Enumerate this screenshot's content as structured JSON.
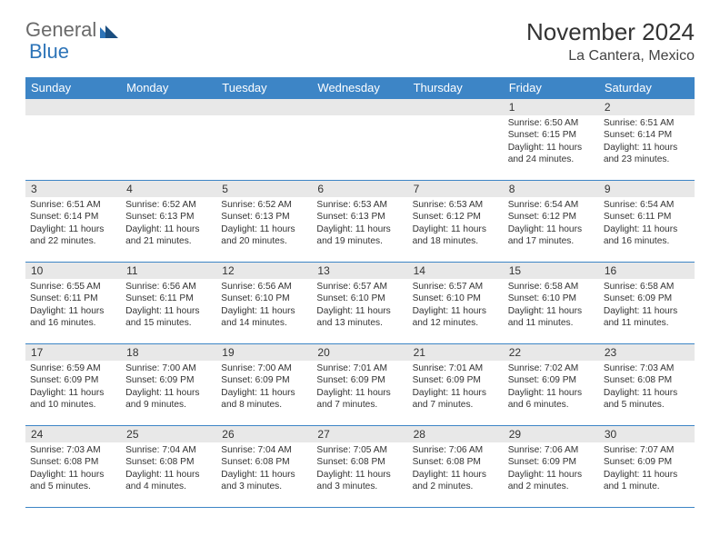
{
  "brand": {
    "general": "General",
    "blue": "Blue"
  },
  "header": {
    "title": "November 2024",
    "subtitle": "La Cantera, Mexico"
  },
  "colors": {
    "header_bg": "#3d85c6",
    "header_text": "#ffffff",
    "daynum_bg": "#e8e8e8",
    "border": "#3d85c6",
    "text": "#333333",
    "page_bg": "#ffffff"
  },
  "typography": {
    "title_fontsize": 26,
    "subtitle_fontsize": 16,
    "weekday_fontsize": 13,
    "daynum_fontsize": 12,
    "body_fontsize": 10.2
  },
  "weekdays": [
    "Sunday",
    "Monday",
    "Tuesday",
    "Wednesday",
    "Thursday",
    "Friday",
    "Saturday"
  ],
  "weeks": [
    [
      {
        "empty": true
      },
      {
        "empty": true
      },
      {
        "empty": true
      },
      {
        "empty": true
      },
      {
        "empty": true
      },
      {
        "num": "1",
        "sunrise": "6:50 AM",
        "sunset": "6:15 PM",
        "daylight": "11 hours and 24 minutes."
      },
      {
        "num": "2",
        "sunrise": "6:51 AM",
        "sunset": "6:14 PM",
        "daylight": "11 hours and 23 minutes."
      }
    ],
    [
      {
        "num": "3",
        "sunrise": "6:51 AM",
        "sunset": "6:14 PM",
        "daylight": "11 hours and 22 minutes."
      },
      {
        "num": "4",
        "sunrise": "6:52 AM",
        "sunset": "6:13 PM",
        "daylight": "11 hours and 21 minutes."
      },
      {
        "num": "5",
        "sunrise": "6:52 AM",
        "sunset": "6:13 PM",
        "daylight": "11 hours and 20 minutes."
      },
      {
        "num": "6",
        "sunrise": "6:53 AM",
        "sunset": "6:13 PM",
        "daylight": "11 hours and 19 minutes."
      },
      {
        "num": "7",
        "sunrise": "6:53 AM",
        "sunset": "6:12 PM",
        "daylight": "11 hours and 18 minutes."
      },
      {
        "num": "8",
        "sunrise": "6:54 AM",
        "sunset": "6:12 PM",
        "daylight": "11 hours and 17 minutes."
      },
      {
        "num": "9",
        "sunrise": "6:54 AM",
        "sunset": "6:11 PM",
        "daylight": "11 hours and 16 minutes."
      }
    ],
    [
      {
        "num": "10",
        "sunrise": "6:55 AM",
        "sunset": "6:11 PM",
        "daylight": "11 hours and 16 minutes."
      },
      {
        "num": "11",
        "sunrise": "6:56 AM",
        "sunset": "6:11 PM",
        "daylight": "11 hours and 15 minutes."
      },
      {
        "num": "12",
        "sunrise": "6:56 AM",
        "sunset": "6:10 PM",
        "daylight": "11 hours and 14 minutes."
      },
      {
        "num": "13",
        "sunrise": "6:57 AM",
        "sunset": "6:10 PM",
        "daylight": "11 hours and 13 minutes."
      },
      {
        "num": "14",
        "sunrise": "6:57 AM",
        "sunset": "6:10 PM",
        "daylight": "11 hours and 12 minutes."
      },
      {
        "num": "15",
        "sunrise": "6:58 AM",
        "sunset": "6:10 PM",
        "daylight": "11 hours and 11 minutes."
      },
      {
        "num": "16",
        "sunrise": "6:58 AM",
        "sunset": "6:09 PM",
        "daylight": "11 hours and 11 minutes."
      }
    ],
    [
      {
        "num": "17",
        "sunrise": "6:59 AM",
        "sunset": "6:09 PM",
        "daylight": "11 hours and 10 minutes."
      },
      {
        "num": "18",
        "sunrise": "7:00 AM",
        "sunset": "6:09 PM",
        "daylight": "11 hours and 9 minutes."
      },
      {
        "num": "19",
        "sunrise": "7:00 AM",
        "sunset": "6:09 PM",
        "daylight": "11 hours and 8 minutes."
      },
      {
        "num": "20",
        "sunrise": "7:01 AM",
        "sunset": "6:09 PM",
        "daylight": "11 hours and 7 minutes."
      },
      {
        "num": "21",
        "sunrise": "7:01 AM",
        "sunset": "6:09 PM",
        "daylight": "11 hours and 7 minutes."
      },
      {
        "num": "22",
        "sunrise": "7:02 AM",
        "sunset": "6:09 PM",
        "daylight": "11 hours and 6 minutes."
      },
      {
        "num": "23",
        "sunrise": "7:03 AM",
        "sunset": "6:08 PM",
        "daylight": "11 hours and 5 minutes."
      }
    ],
    [
      {
        "num": "24",
        "sunrise": "7:03 AM",
        "sunset": "6:08 PM",
        "daylight": "11 hours and 5 minutes."
      },
      {
        "num": "25",
        "sunrise": "7:04 AM",
        "sunset": "6:08 PM",
        "daylight": "11 hours and 4 minutes."
      },
      {
        "num": "26",
        "sunrise": "7:04 AM",
        "sunset": "6:08 PM",
        "daylight": "11 hours and 3 minutes."
      },
      {
        "num": "27",
        "sunrise": "7:05 AM",
        "sunset": "6:08 PM",
        "daylight": "11 hours and 3 minutes."
      },
      {
        "num": "28",
        "sunrise": "7:06 AM",
        "sunset": "6:08 PM",
        "daylight": "11 hours and 2 minutes."
      },
      {
        "num": "29",
        "sunrise": "7:06 AM",
        "sunset": "6:09 PM",
        "daylight": "11 hours and 2 minutes."
      },
      {
        "num": "30",
        "sunrise": "7:07 AM",
        "sunset": "6:09 PM",
        "daylight": "11 hours and 1 minute."
      }
    ]
  ],
  "labels": {
    "sunrise": "Sunrise: ",
    "sunset": "Sunset: ",
    "daylight": "Daylight: "
  }
}
